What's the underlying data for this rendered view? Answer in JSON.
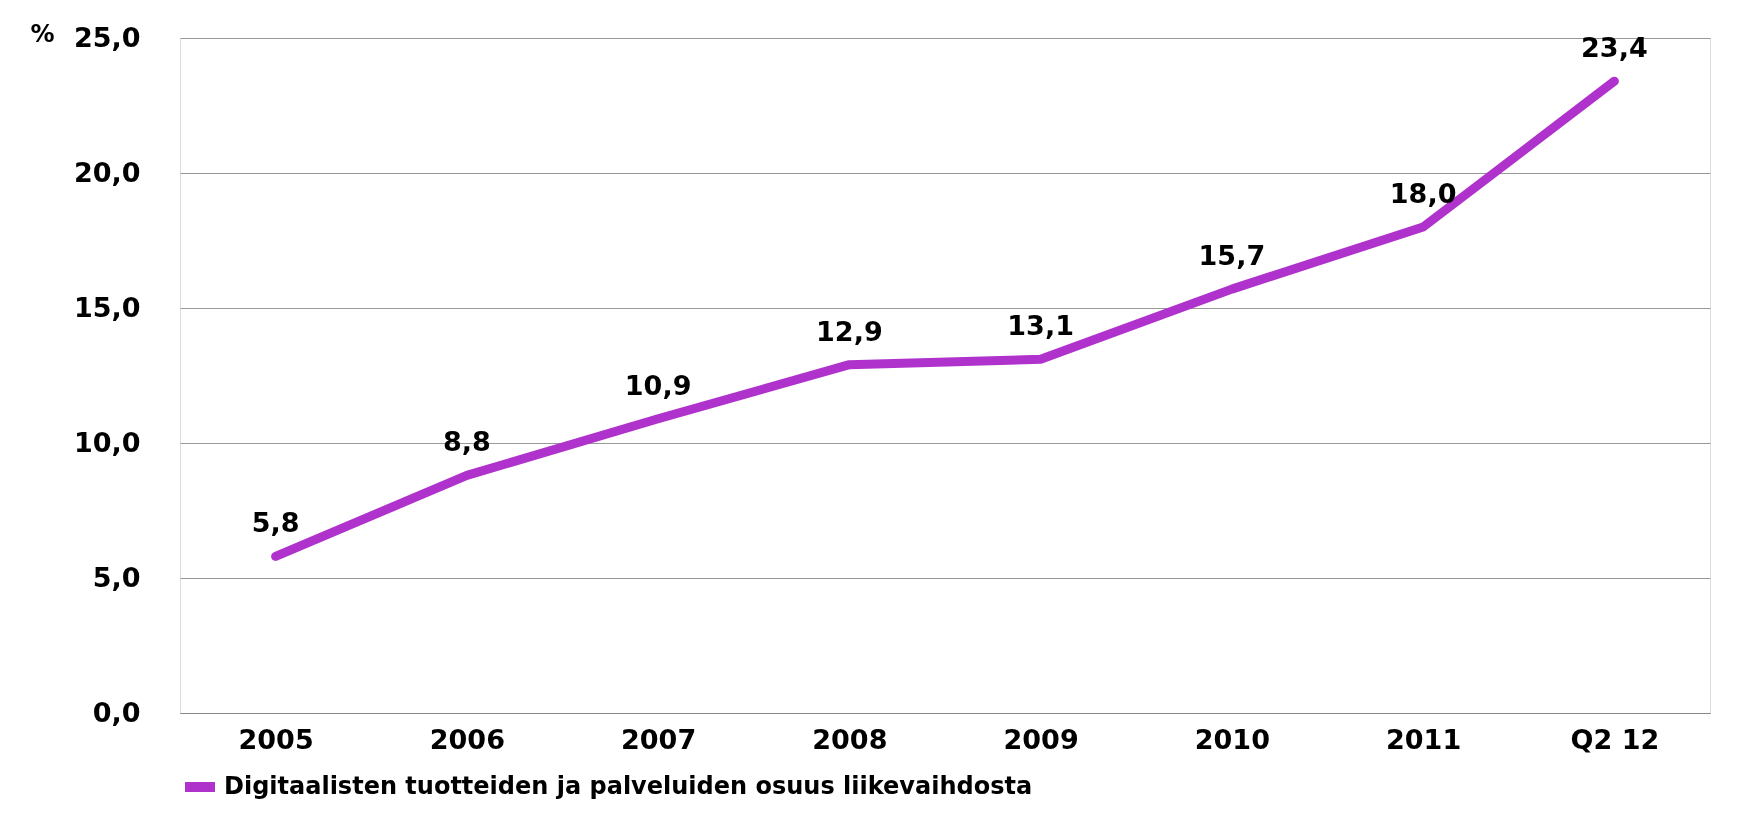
{
  "chart_data": {
    "type": "line",
    "ylabel": "%",
    "categories": [
      "2005",
      "2006",
      "2007",
      "2008",
      "2009",
      "2010",
      "2011",
      "Q2 12"
    ],
    "series": [
      {
        "name": "Digitaalisten tuotteiden ja palveluiden osuus liikevaihdosta",
        "color": "#b032cc",
        "values": [
          5.8,
          8.8,
          10.9,
          12.9,
          13.1,
          15.7,
          18.0,
          23.4
        ],
        "value_labels": [
          "5,8",
          "8,8",
          "10,9",
          "12,9",
          "13,1",
          "15,7",
          "18,0",
          "23,4"
        ]
      }
    ],
    "ylim": [
      0,
      25
    ],
    "yticks": [
      {
        "value": 0,
        "label": "0,0"
      },
      {
        "value": 5,
        "label": "5,0"
      },
      {
        "value": 10,
        "label": "10,0"
      },
      {
        "value": 15,
        "label": "15,0"
      },
      {
        "value": 20,
        "label": "20,0"
      },
      {
        "value": 25,
        "label": "25,0"
      }
    ],
    "grid": "y",
    "legend": "bottom",
    "marker": "none",
    "line_style": "solid"
  }
}
